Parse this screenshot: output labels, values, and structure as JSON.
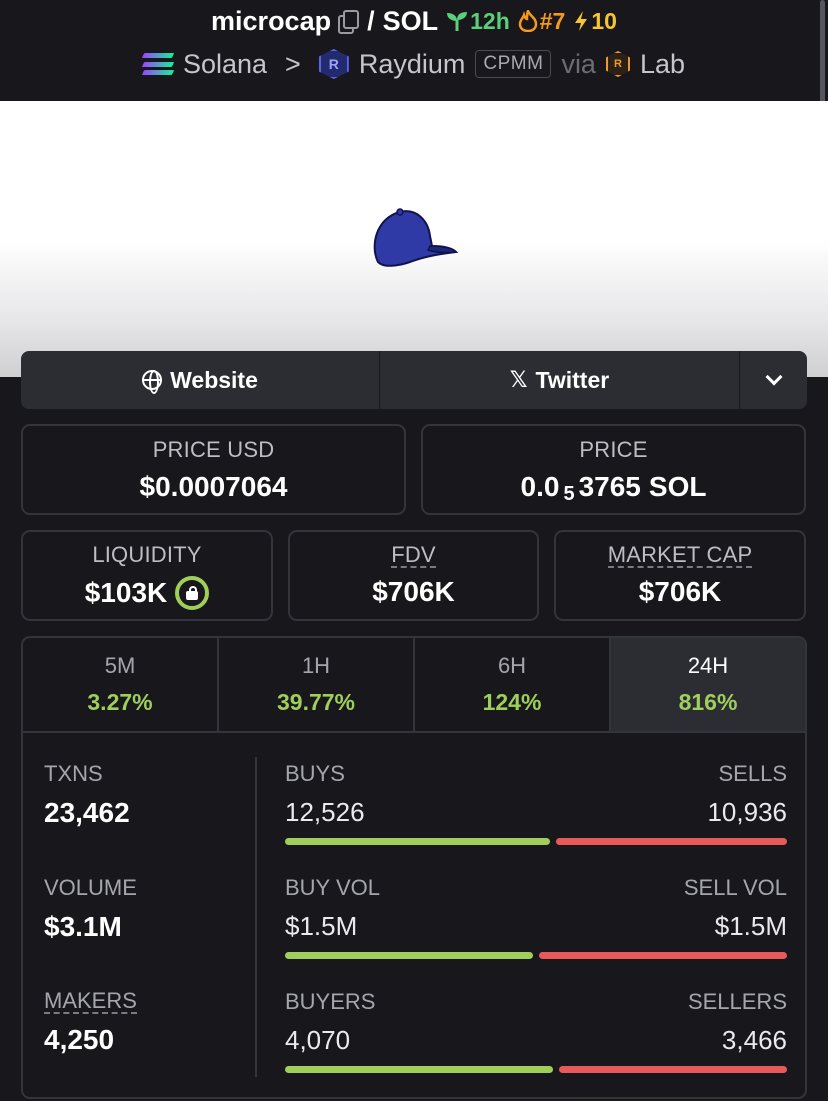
{
  "header": {
    "token": "microcap",
    "separator": "/",
    "quote": "SOL",
    "age": "12h",
    "rank": "#7",
    "boosts": "10",
    "chain": "Solana",
    "crumb_sep": ">",
    "dex": "Raydium",
    "pool_type": "CPMM",
    "via": "via",
    "launchpad": "Lab"
  },
  "links": {
    "website": "Website",
    "twitter": "Twitter"
  },
  "price_usd": {
    "label": "PRICE USD",
    "value": "$0.0007064"
  },
  "price_native": {
    "label": "PRICE",
    "prefix": "0.0",
    "subscript": "5",
    "digits": "3765",
    "unit": "SOL"
  },
  "liquidity": {
    "label": "LIQUIDITY",
    "value": "$103K"
  },
  "fdv": {
    "label": "FDV",
    "value": "$706K"
  },
  "market_cap": {
    "label": "MARKET CAP",
    "value": "$706K"
  },
  "timeframes": [
    {
      "label": "5M",
      "change": "3.27%"
    },
    {
      "label": "1H",
      "change": "39.77%"
    },
    {
      "label": "6H",
      "change": "124%"
    },
    {
      "label": "24H",
      "change": "816%"
    }
  ],
  "active_timeframe": "24H",
  "stats": {
    "txns": {
      "label": "TXNS",
      "value": "23,462"
    },
    "volume": {
      "label": "VOLUME",
      "value": "$3.1M"
    },
    "makers": {
      "label": "MAKERS",
      "value": "4,250"
    },
    "buys": {
      "label": "BUYS",
      "value": "12,526",
      "sell_label": "SELLS",
      "sell_value": "10,936",
      "buy_ratio": 0.534
    },
    "vol": {
      "label": "BUY VOL",
      "value": "$1.5M",
      "sell_label": "SELL VOL",
      "sell_value": "$1.5M",
      "buy_ratio": 0.5
    },
    "buyers": {
      "label": "BUYERS",
      "value": "4,070",
      "sell_label": "SELLERS",
      "sell_value": "3,466",
      "buy_ratio": 0.54
    }
  },
  "colors": {
    "background": "#17171c",
    "positive": "#9fcf5a",
    "negative": "#e8595a",
    "age_green": "#5bd07b",
    "rank_orange": "#f59a1b",
    "boost_yellow": "#f7c531"
  }
}
